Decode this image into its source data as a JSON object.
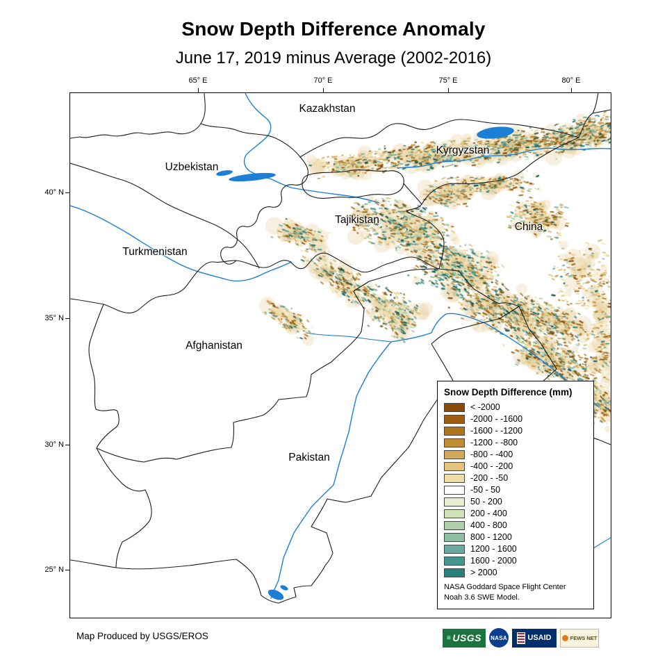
{
  "title": "Snow Depth Difference Anomaly",
  "subtitle": "June 17, 2019 minus Average (2002-2016)",
  "map": {
    "lon_ticks": [
      "65° E",
      "70° E",
      "75° E",
      "80° E"
    ],
    "lat_ticks": [
      "40° N",
      "35° N",
      "30° N",
      "25° N"
    ],
    "country_labels": [
      "Kazakhstan",
      "Kyrgyzstan",
      "Uzbekistan",
      "Tajikistan",
      "China",
      "Turkmenistan",
      "Afghanistan",
      "Pakistan"
    ],
    "water_color": "#1b7fd6"
  },
  "legend": {
    "title": "Snow Depth Difference (mm)",
    "entries": [
      {
        "label": "< -2000",
        "color": "#8a4a08"
      },
      {
        "label": "-2000 - -1600",
        "color": "#9d5e10"
      },
      {
        "label": "-1600 - -1200",
        "color": "#b0751c"
      },
      {
        "label": "-1200 - -800",
        "color": "#c18c33"
      },
      {
        "label": "-800 - -400",
        "color": "#d3a857"
      },
      {
        "label": "-400 - -200",
        "color": "#e2c27d"
      },
      {
        "label": "-200 - -50",
        "color": "#f0dda4"
      },
      {
        "label": "-50 - 50",
        "color": "#ffffff"
      },
      {
        "label": "50 - 200",
        "color": "#e9efd0"
      },
      {
        "label": "200 - 400",
        "color": "#cfe2b6"
      },
      {
        "label": "400 - 800",
        "color": "#aed0a8"
      },
      {
        "label": "800 - 1200",
        "color": "#8cbea4"
      },
      {
        "label": "1200 - 1600",
        "color": "#68aa9f"
      },
      {
        "label": "1600 - 2000",
        "color": "#46968f"
      },
      {
        "label": "> 2000",
        "color": "#27817c"
      }
    ],
    "source": [
      "NASA Goddard Space Flight Center",
      "Noah 3.6 SWE  Model."
    ]
  },
  "footer": {
    "credit": "Map Produced by USGS/EROS",
    "logos": [
      {
        "label": "USGS"
      },
      {
        "label": "NASA"
      },
      {
        "label": "USAID"
      },
      {
        "label": "FEWS NET"
      }
    ]
  }
}
